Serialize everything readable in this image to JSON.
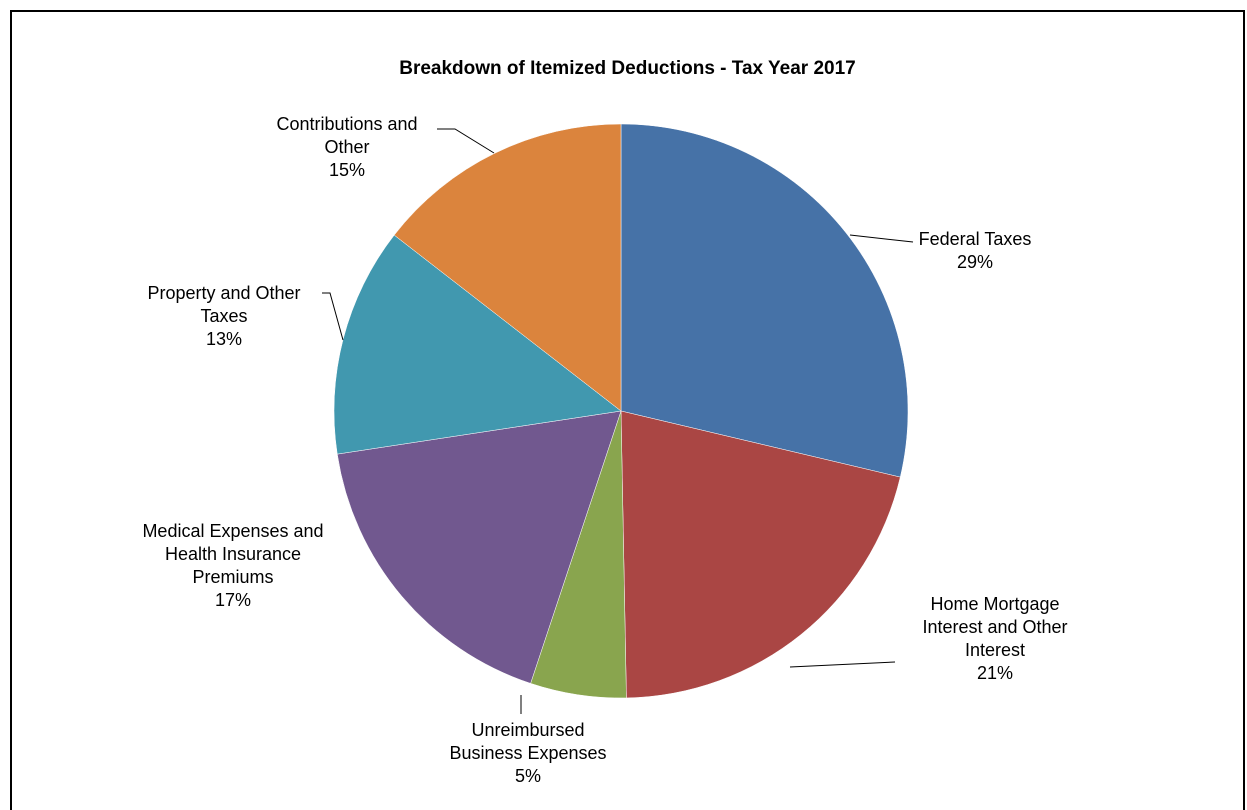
{
  "chart_data": {
    "type": "pie",
    "title": "Breakdown of Itemized Deductions - Tax Year 2017",
    "slices": [
      {
        "lines": [
          "Federal Taxes"
        ],
        "pct_label": "29%",
        "value": 28.7,
        "color": "#4672A7"
      },
      {
        "lines": [
          "Home Mortgage",
          "Interest and Other",
          "Interest"
        ],
        "pct_label": "21%",
        "value": 21.0,
        "color": "#AA4644"
      },
      {
        "lines": [
          "Unreimbursed",
          "Business Expenses"
        ],
        "pct_label": "5%",
        "value": 5.4,
        "color": "#89A54E"
      },
      {
        "lines": [
          "Medical Expenses and",
          "Health Insurance",
          "Premiums"
        ],
        "pct_label": "17%",
        "value": 17.5,
        "color": "#71588F"
      },
      {
        "lines": [
          "Property and Other",
          "Taxes"
        ],
        "pct_label": "13%",
        "value": 12.9,
        "color": "#4198AF"
      },
      {
        "lines": [
          "Contributions and",
          "Other"
        ],
        "pct_label": "15%",
        "value": 14.5,
        "color": "#DB843D"
      }
    ]
  }
}
